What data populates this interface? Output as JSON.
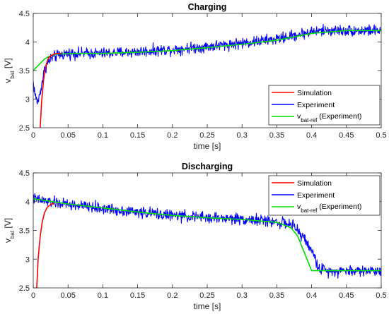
{
  "chart_data": [
    {
      "type": "line",
      "title": "Charging",
      "xlabel": "time [s]",
      "ylabel_main": "v",
      "ylabel_sub": "bat",
      "ylabel_unit": " [V]",
      "xlim": [
        0,
        0.5
      ],
      "ylim": [
        2.5,
        4.5
      ],
      "x_ticks": [
        "0",
        "0.05",
        "0.1",
        "0.15",
        "0.2",
        "0.25",
        "0.3",
        "0.35",
        "0.4",
        "0.45",
        "0.5"
      ],
      "y_ticks": [
        "2.5",
        "3",
        "3.5",
        "4",
        "4.5"
      ],
      "grid": false,
      "legend_position": "bottom-right",
      "series": [
        {
          "name": "Simulation",
          "color": "#ff0000",
          "x": [
            0.01,
            0.012,
            0.015,
            0.018,
            0.02,
            0.022,
            0.025,
            0.03,
            0.035,
            0.04
          ],
          "y": [
            2.5,
            2.95,
            3.35,
            3.58,
            3.66,
            3.72,
            3.76,
            3.79,
            3.8,
            3.8
          ]
        },
        {
          "name": "Experiment",
          "color": "#0000ff",
          "noise": 0.06,
          "x": [
            0.0,
            0.003,
            0.006,
            0.008,
            0.012,
            0.016,
            0.02,
            0.025,
            0.03,
            0.04,
            0.05,
            0.1,
            0.15,
            0.2,
            0.25,
            0.3,
            0.35,
            0.4,
            0.42,
            0.45,
            0.5
          ],
          "y": [
            3.3,
            3.05,
            2.95,
            3.0,
            3.25,
            3.5,
            3.62,
            3.7,
            3.74,
            3.78,
            3.8,
            3.8,
            3.83,
            3.87,
            3.92,
            3.98,
            4.05,
            4.18,
            4.2,
            4.2,
            4.2
          ]
        },
        {
          "name_main": "v",
          "name_sub": "bat-ref",
          "name_rest": " (Experiment)",
          "color": "#00dd00",
          "x": [
            0.0,
            0.004,
            0.008,
            0.012,
            0.016,
            0.02,
            0.025,
            0.03,
            0.035,
            0.04,
            0.06,
            0.1,
            0.15,
            0.2,
            0.25,
            0.3,
            0.35,
            0.4,
            0.45,
            0.5
          ],
          "y": [
            3.5,
            3.55,
            3.6,
            3.65,
            3.7,
            3.73,
            3.76,
            3.78,
            3.79,
            3.79,
            3.8,
            3.8,
            3.82,
            3.85,
            3.9,
            3.96,
            4.03,
            4.15,
            4.2,
            4.2
          ]
        }
      ]
    },
    {
      "type": "line",
      "title": "Discharging",
      "xlabel": "time [s]",
      "ylabel_main": "v",
      "ylabel_sub": "bat",
      "ylabel_unit": " [V]",
      "xlim": [
        0,
        0.5
      ],
      "ylim": [
        2.5,
        4.5
      ],
      "x_ticks": [
        "0",
        "0.05",
        "0.1",
        "0.15",
        "0.2",
        "0.25",
        "0.3",
        "0.35",
        "0.4",
        "0.45",
        "0.5"
      ],
      "y_ticks": [
        "2.5",
        "3",
        "3.5",
        "4",
        "4.5"
      ],
      "grid": false,
      "legend_position": "top-right",
      "series": [
        {
          "name": "Simulation",
          "color": "#ff0000",
          "x": [
            0.005,
            0.007,
            0.01,
            0.013,
            0.016,
            0.02,
            0.025,
            0.03
          ],
          "y": [
            2.5,
            3.0,
            3.4,
            3.65,
            3.8,
            3.9,
            3.95,
            3.97
          ]
        },
        {
          "name": "Experiment",
          "color": "#0000ff",
          "noise": 0.06,
          "x": [
            0.0,
            0.02,
            0.05,
            0.1,
            0.15,
            0.2,
            0.25,
            0.3,
            0.35,
            0.37,
            0.38,
            0.39,
            0.4,
            0.405,
            0.41,
            0.42,
            0.45,
            0.5
          ],
          "y": [
            4.05,
            4.0,
            3.95,
            3.88,
            3.82,
            3.76,
            3.72,
            3.7,
            3.65,
            3.6,
            3.5,
            3.35,
            3.15,
            3.0,
            2.85,
            2.8,
            2.8,
            2.8
          ]
        },
        {
          "name_main": "v",
          "name_sub": "bat-ref",
          "name_rest": " (Experiment)",
          "color": "#00dd00",
          "x": [
            0.0,
            0.05,
            0.1,
            0.15,
            0.2,
            0.25,
            0.3,
            0.35,
            0.37,
            0.38,
            0.39,
            0.4,
            0.5
          ],
          "y": [
            4.05,
            3.96,
            3.89,
            3.82,
            3.76,
            3.72,
            3.69,
            3.64,
            3.55,
            3.4,
            3.1,
            2.8,
            2.8
          ]
        }
      ]
    }
  ]
}
